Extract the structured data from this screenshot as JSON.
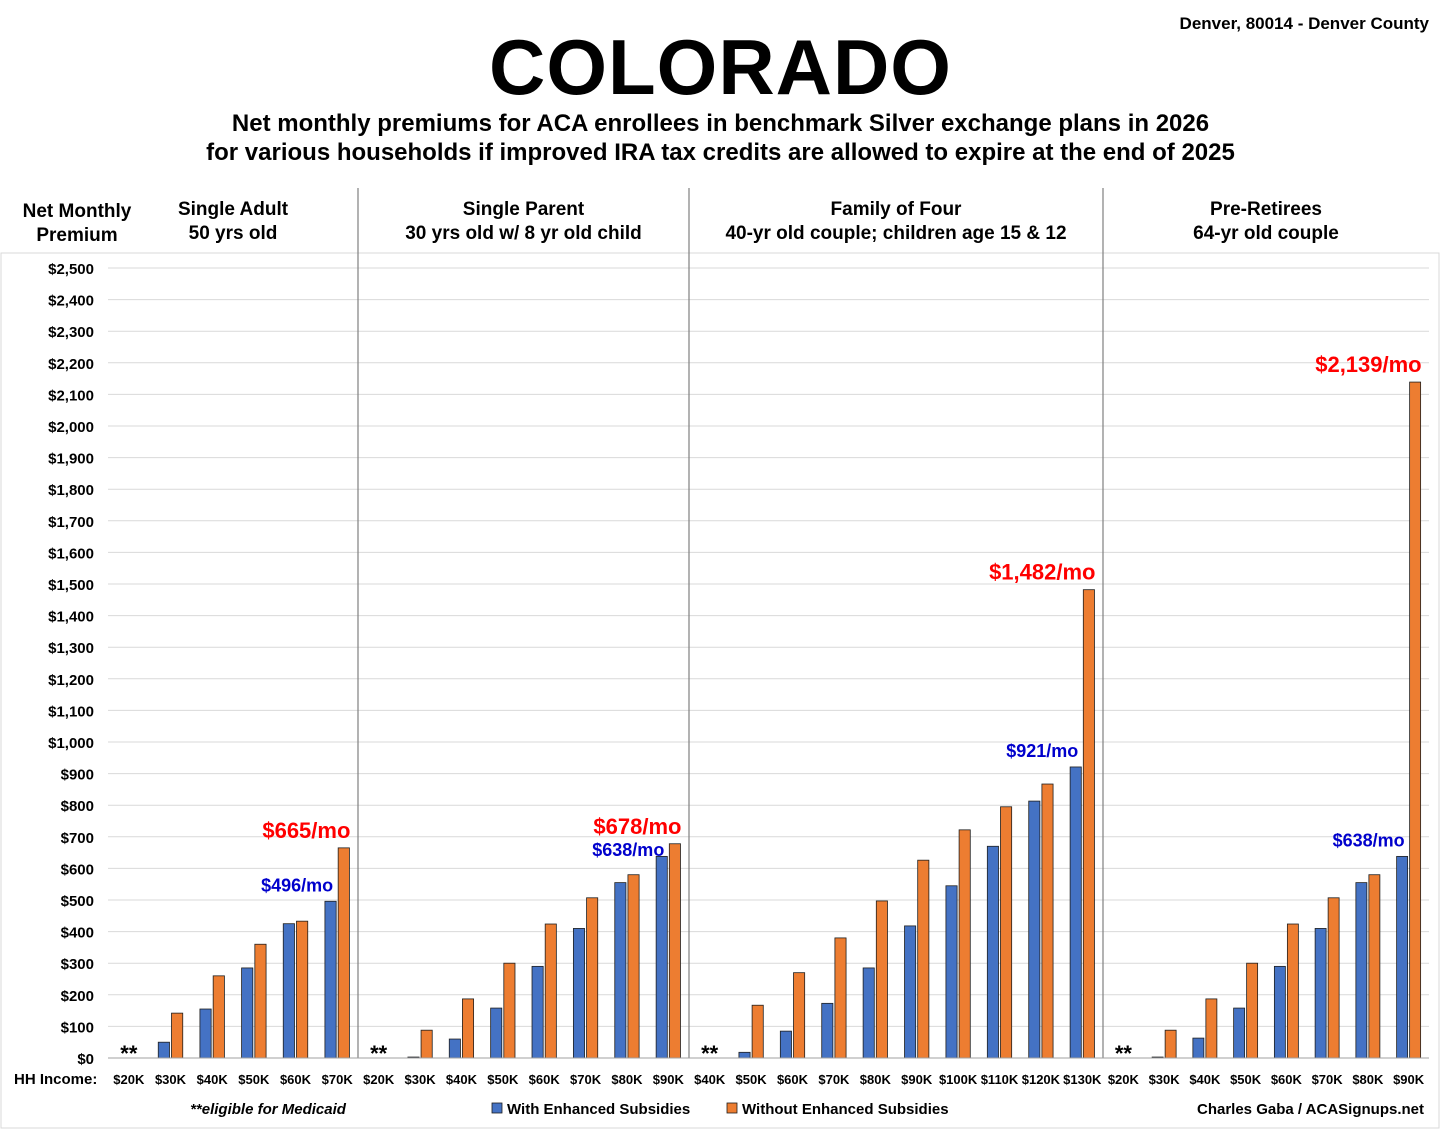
{
  "header": {
    "title": "COLORADO",
    "location": "Denver, 80014 - Denver County",
    "subtitle_line1": "Net monthly premiums for ACA enrollees in benchmark Silver exchange plans in 2026",
    "subtitle_line2": "for various households if improved IRA tax credits are allowed to expire at the end of 2025"
  },
  "footer": {
    "medicaid_note": "**eligible for Medicaid",
    "credit": "Charles Gaba / ACASignups.net",
    "hh_income_label": "HH Income:"
  },
  "chart_data": {
    "type": "bar",
    "ylabel": "Net Monthly Premium",
    "ylim": [
      0,
      2500
    ],
    "ytick_step": 100,
    "ytick_labels": [
      "$0",
      "$100",
      "$200",
      "$300",
      "$400",
      "$500",
      "$600",
      "$700",
      "$800",
      "$900",
      "$1,000",
      "$1,100",
      "$1,200",
      "$1,300",
      "$1,400",
      "$1,500",
      "$1,600",
      "$1,700",
      "$1,800",
      "$1,900",
      "$2,000",
      "$2,100",
      "$2,200",
      "$2,300",
      "$2,400",
      "$2,500"
    ],
    "grid": true,
    "legend_position": "bottom-center",
    "series": [
      {
        "name": "With Enhanced Subsidies",
        "color": "#4472C4"
      },
      {
        "name": "Without Enhanced Subsidies",
        "color": "#ED7D31"
      }
    ],
    "medicaid_marker": "**",
    "panels": [
      {
        "title_line1": "Single Adult",
        "title_line2": "50 yrs old",
        "categories": [
          "$20K",
          "$30K",
          "$40K",
          "$50K",
          "$60K",
          "$70K"
        ],
        "with": [
          0,
          50,
          155,
          285,
          425,
          496
        ],
        "without": [
          0,
          142,
          260,
          360,
          433,
          665
        ],
        "medicaid": [
          0
        ],
        "annotations": [
          {
            "text": "$665/mo",
            "color": "#FF0000",
            "series": "without",
            "index": 5
          },
          {
            "text": "$496/mo",
            "color": "#0000CC",
            "series": "with",
            "index": 5
          }
        ]
      },
      {
        "title_line1": "Single Parent",
        "title_line2": "30 yrs old w/ 8 yr old child",
        "categories": [
          "$20K",
          "$30K",
          "$40K",
          "$50K",
          "$60K",
          "$70K",
          "$80K",
          "$90K"
        ],
        "with": [
          0,
          3,
          60,
          158,
          290,
          410,
          555,
          638
        ],
        "without": [
          0,
          88,
          187,
          300,
          424,
          507,
          580,
          678
        ],
        "medicaid": [
          0
        ],
        "annotations": [
          {
            "text": "$678/mo",
            "color": "#FF0000",
            "series": "without",
            "index": 7
          },
          {
            "text": "$638/mo",
            "color": "#0000CC",
            "series": "with",
            "index": 7
          }
        ]
      },
      {
        "title_line1": "Family of Four",
        "title_line2": "40-yr old couple; children age 15 & 12",
        "categories": [
          "$40K",
          "$50K",
          "$60K",
          "$70K",
          "$80K",
          "$90K",
          "$100K",
          "$110K",
          "$120K",
          "$130K"
        ],
        "with": [
          0,
          18,
          85,
          173,
          285,
          418,
          545,
          670,
          813,
          921
        ],
        "without": [
          0,
          167,
          270,
          380,
          497,
          626,
          722,
          795,
          867,
          1482
        ],
        "medicaid": [
          0
        ],
        "annotations": [
          {
            "text": "$1,482/mo",
            "color": "#FF0000",
            "series": "without",
            "index": 9
          },
          {
            "text": "$921/mo",
            "color": "#0000CC",
            "series": "with",
            "index": 9
          }
        ]
      },
      {
        "title_line1": "Pre-Retirees",
        "title_line2": "64-yr old couple",
        "categories": [
          "$20K",
          "$30K",
          "$40K",
          "$50K",
          "$60K",
          "$70K",
          "$80K",
          "$90K"
        ],
        "with": [
          0,
          3,
          63,
          158,
          290,
          410,
          555,
          638
        ],
        "without": [
          0,
          88,
          187,
          300,
          424,
          507,
          580,
          2139
        ],
        "medicaid": [
          0
        ],
        "annotations": [
          {
            "text": "$2,139/mo",
            "color": "#FF0000",
            "series": "without",
            "index": 7
          },
          {
            "text": "$638/mo",
            "color": "#0000CC",
            "series": "with",
            "index": 7
          }
        ]
      }
    ]
  }
}
